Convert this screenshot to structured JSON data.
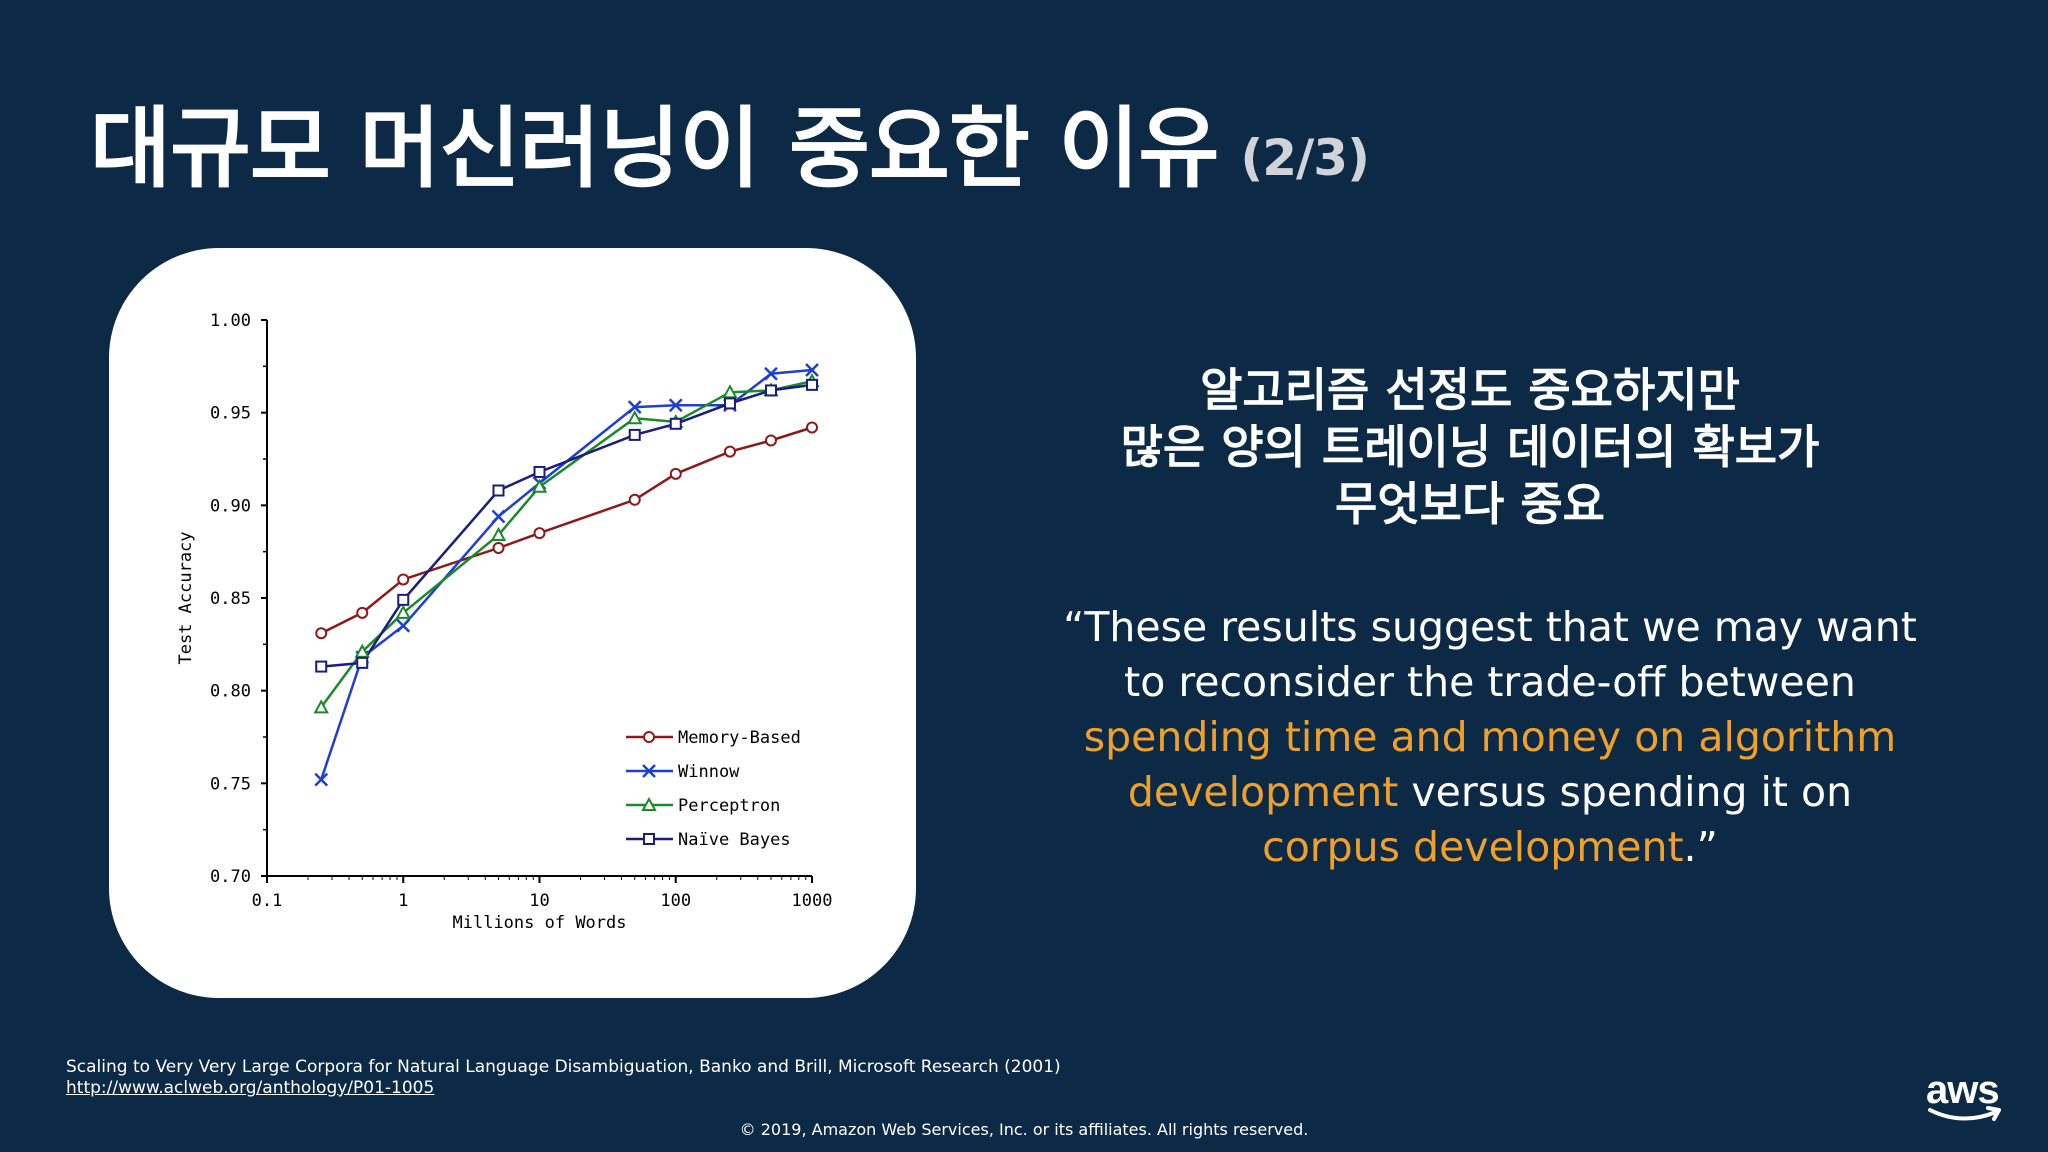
{
  "title": {
    "main": "대규모 머신러닝이 중요한 이유",
    "pager": "(2/3)"
  },
  "headline": {
    "lines": [
      "알고리즘 선정도 중요하지만",
      "많은 양의 트레이닝 데이터의 확보가",
      "무엇보다 중요"
    ]
  },
  "quote": {
    "part1": "“These results suggest that we may want to reconsider the trade-off between ",
    "highlight1": "spending time and money on algorithm development",
    "part2": " versus spending it on ",
    "highlight2": "corpus development",
    "part3": ".”"
  },
  "citation": {
    "text": "Scaling to Very Very Large Corpora for Natural Language Disambiguation, Banko and Brill, Microsoft Research (2001)",
    "link": "http://www.aclweb.org/anthology/P01-1005"
  },
  "copyright": "© 2019, Amazon Web Services, Inc. or its affiliates. All rights reserved.",
  "logo": {
    "text": "aws",
    "icon": "aws-smile-icon"
  },
  "colors": {
    "background": "#0c2a45",
    "highlight": "#f0a02a"
  },
  "chart_data": {
    "type": "line",
    "title": "",
    "xlabel": "Millions of Words",
    "ylabel": "Test Accuracy",
    "xscale": "log",
    "xlim": [
      0.1,
      1000
    ],
    "ylim": [
      0.7,
      1.0
    ],
    "xticks": [
      "0.1",
      "1",
      "10",
      "100",
      "1000"
    ],
    "yticks": [
      "0.70",
      "0.75",
      "0.80",
      "0.85",
      "0.90",
      "0.95",
      "1.00"
    ],
    "legend_position": "bottom-right",
    "grid": false,
    "series": [
      {
        "name": "Memory-Based",
        "color": "#8b1a1a",
        "marker": "circle",
        "x": [
          0.25,
          0.5,
          1,
          5,
          10,
          50,
          100,
          250,
          500,
          1000
        ],
        "y": [
          0.831,
          0.842,
          0.86,
          0.877,
          0.885,
          0.903,
          0.917,
          0.929,
          0.935,
          0.942
        ]
      },
      {
        "name": "Winnow",
        "color": "#1f3fd0",
        "marker": "x",
        "x": [
          0.25,
          0.5,
          1,
          5,
          10,
          50,
          100,
          250,
          500,
          1000
        ],
        "y": [
          0.752,
          0.818,
          0.835,
          0.894,
          0.912,
          0.953,
          0.954,
          0.954,
          0.971,
          0.973
        ]
      },
      {
        "name": "Perceptron",
        "color": "#1a8a2a",
        "marker": "triangle",
        "x": [
          0.25,
          0.5,
          1,
          5,
          10,
          50,
          100,
          250,
          500,
          1000
        ],
        "y": [
          0.791,
          0.821,
          0.842,
          0.884,
          0.91,
          0.947,
          0.945,
          0.961,
          0.962,
          0.967
        ]
      },
      {
        "name": "Naïve Bayes",
        "color": "#1c1c7a",
        "marker": "square",
        "x": [
          0.25,
          0.5,
          1,
          5,
          10,
          50,
          100,
          250,
          500,
          1000
        ],
        "y": [
          0.813,
          0.815,
          0.849,
          0.908,
          0.918,
          0.938,
          0.944,
          0.955,
          0.962,
          0.965
        ]
      }
    ]
  }
}
